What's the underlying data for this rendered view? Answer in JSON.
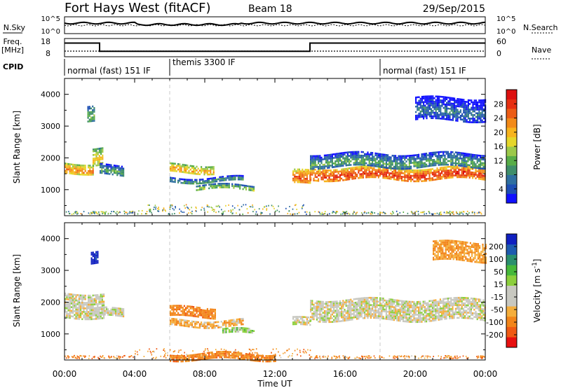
{
  "header": {
    "station": "Fort Hays West (fitACF)",
    "beam": "Beam 18",
    "date": "29/Sep/2015"
  },
  "top_panel": {
    "left_label": "N.Sky",
    "right_label": "N.Search",
    "left_ticks": [
      "10^5",
      "10^0"
    ],
    "right_ticks": [
      "10^5",
      "10^0"
    ]
  },
  "freq_panel": {
    "left_label_line1": "Freq.",
    "left_label_line2": "[MHz]",
    "right_label": "Nave",
    "left_ticks": [
      "18",
      "8"
    ],
    "right_ticks": [
      "60",
      "0"
    ],
    "freq_steps": [
      {
        "from": 0.0,
        "to": 2.0,
        "value": 15.5
      },
      {
        "from": 2.0,
        "to": 14.0,
        "value": 11.0
      },
      {
        "from": 14.0,
        "to": 24.0,
        "value": 15.5
      }
    ]
  },
  "cpid": {
    "label": "CPID",
    "segments": [
      {
        "from": 0.0,
        "to": 6.0,
        "name": "normal (fast) 151 IF"
      },
      {
        "from": 6.0,
        "to": 18.0,
        "name": "themis 3300 IF"
      },
      {
        "from": 18.0,
        "to": 24.0,
        "name": "normal (fast) 151 IF"
      }
    ]
  },
  "chart_data": [
    {
      "type": "heatmap",
      "name": "power",
      "xlabel": "",
      "ylabel": "Slant Range [km]",
      "xlim": [
        0,
        24
      ],
      "ylim": [
        180,
        4500
      ],
      "ytick_labels": [
        "1000",
        "2000",
        "3000",
        "4000"
      ],
      "colorbar": {
        "label": "Power [dB]",
        "tick_labels": [
          "4",
          "8",
          "12",
          "16",
          "20",
          "24",
          "28"
        ],
        "colors": [
          "#1010ff",
          "#1e4fb4",
          "#2f6fa0",
          "#3f8e6a",
          "#58ad48",
          "#9cc94a",
          "#e5d62a",
          "#f7b41e",
          "#f28a19",
          "#ec5c15",
          "#e62f11",
          "#dd1010"
        ]
      },
      "echo_bands": [
        {
          "t0": 0.0,
          "t1": 1.6,
          "r0": 1550,
          "r1": 1850,
          "level": 24
        },
        {
          "t0": 1.6,
          "t1": 2.2,
          "r0": 1750,
          "r1": 2300,
          "level": 20
        },
        {
          "t0": 1.3,
          "t1": 1.7,
          "r0": 3100,
          "r1": 3600,
          "level": 14
        },
        {
          "t0": 2.0,
          "t1": 3.4,
          "r0": 1500,
          "r1": 1800,
          "level": 12
        },
        {
          "t0": 6.0,
          "t1": 8.5,
          "r0": 1550,
          "r1": 1800,
          "level": 22
        },
        {
          "t0": 6.0,
          "t1": 10.2,
          "r0": 1250,
          "r1": 1400,
          "level": 12
        },
        {
          "t0": 7.5,
          "t1": 10.8,
          "r0": 1000,
          "r1": 1150,
          "level": 16
        },
        {
          "t0": 13.0,
          "t1": 14.0,
          "r0": 1150,
          "r1": 1600,
          "level": 26
        },
        {
          "t0": 14.0,
          "t1": 24.0,
          "r0": 1350,
          "r1": 1700,
          "level": 28
        },
        {
          "t0": 14.0,
          "t1": 24.0,
          "r0": 1700,
          "r1": 2150,
          "level": 12
        },
        {
          "t0": 20.0,
          "t1": 24.0,
          "r0": 3200,
          "r1": 3900,
          "level": 8
        }
      ]
    },
    {
      "type": "heatmap",
      "name": "velocity",
      "xlabel": "Time UT",
      "ylabel": "Slant Range [km]",
      "xlim": [
        0,
        24
      ],
      "ylim": [
        180,
        4500
      ],
      "ytick_labels": [
        "1000",
        "2000",
        "3000",
        "4000"
      ],
      "xtick_labels": [
        "00:00",
        "04:00",
        "08:00",
        "12:00",
        "16:00",
        "20:00",
        "00:00"
      ],
      "colorbar": {
        "label": "Velocity [m s",
        "label_sup": "-1",
        "label_end": "]",
        "tick_labels": [
          "-200",
          "-100",
          "-50",
          "-15",
          "15",
          "50",
          "100",
          "200"
        ],
        "colors": [
          "#e81010",
          "#f05a14",
          "#f2851a",
          "#f5ae3c",
          "#c8c8c0",
          "#c8c8c0",
          "#8ccf3c",
          "#46b83a",
          "#2a8f6e",
          "#1e5bb0",
          "#1020c0"
        ]
      },
      "echo_bands": [
        {
          "t0": 0.0,
          "t1": 2.2,
          "r0": 1500,
          "r1": 2300,
          "level": 0
        },
        {
          "t0": 1.5,
          "t1": 1.9,
          "r0": 3200,
          "r1": 3600,
          "level": 170
        },
        {
          "t0": 2.0,
          "t1": 3.4,
          "r0": 1550,
          "r1": 1800,
          "level": 0
        },
        {
          "t0": 6.0,
          "t1": 8.6,
          "r0": 1550,
          "r1": 1850,
          "level": -60
        },
        {
          "t0": 6.0,
          "t1": 10.2,
          "r0": 1250,
          "r1": 1450,
          "level": -30
        },
        {
          "t0": 9.0,
          "t1": 10.8,
          "r0": 1000,
          "r1": 1150,
          "level": 30
        },
        {
          "t0": 6.0,
          "t1": 12.0,
          "r0": 200,
          "r1": 400,
          "level": -60
        },
        {
          "t0": 13.0,
          "t1": 14.0,
          "r0": 1250,
          "r1": 1500,
          "level": 0
        },
        {
          "t0": 14.0,
          "t1": 24.0,
          "r0": 1450,
          "r1": 2100,
          "level": 0
        },
        {
          "t0": 21.0,
          "t1": 24.0,
          "r0": 3300,
          "r1": 3900,
          "level": -40
        }
      ]
    }
  ],
  "x_axis": {
    "label": "Time UT",
    "tick_labels": [
      "00:00",
      "04:00",
      "08:00",
      "12:00",
      "16:00",
      "20:00",
      "00:00"
    ]
  }
}
